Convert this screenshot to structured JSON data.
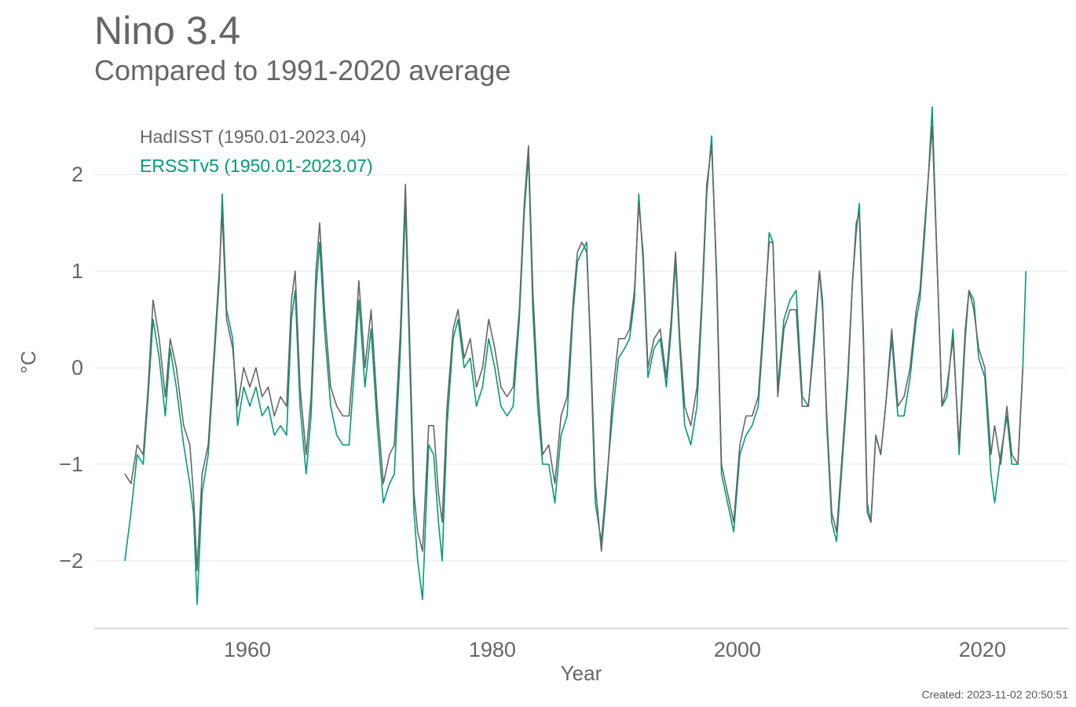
{
  "chart_data": {
    "type": "line",
    "title": "Nino 3.4",
    "subtitle": "Compared to 1991-2020 average",
    "xlabel": "Year",
    "ylabel": "°C",
    "xlim": [
      1947.5,
      2027
    ],
    "ylim": [
      -2.7,
      2.75
    ],
    "xticks": [
      1960,
      1980,
      2000,
      2020
    ],
    "yticks": [
      -2,
      -1,
      0,
      1,
      2
    ],
    "ytick_labels": [
      "−2",
      "−1",
      "0",
      "1",
      "2"
    ],
    "grid": "horizontal",
    "legend_position": "top-left",
    "created": "Created: 2023-11-02 20:50:51",
    "series": [
      {
        "name": "HadISST (1950.01-2023.04)",
        "color": "#666666",
        "x": [
          1950.0,
          1950.5,
          1951.0,
          1951.5,
          1951.9,
          1952.3,
          1952.8,
          1953.3,
          1953.7,
          1954.2,
          1954.8,
          1955.3,
          1955.6,
          1955.9,
          1956.3,
          1956.8,
          1957.3,
          1957.7,
          1957.95,
          1958.3,
          1958.8,
          1959.2,
          1959.7,
          1960.2,
          1960.7,
          1961.2,
          1961.7,
          1962.2,
          1962.7,
          1963.2,
          1963.6,
          1963.9,
          1964.3,
          1964.8,
          1965.2,
          1965.6,
          1965.9,
          1966.3,
          1966.8,
          1967.3,
          1967.8,
          1968.3,
          1968.8,
          1969.1,
          1969.6,
          1970.1,
          1970.6,
          1971.1,
          1971.6,
          1972.0,
          1972.5,
          1972.9,
          1973.2,
          1973.6,
          1973.9,
          1974.3,
          1974.8,
          1975.2,
          1975.6,
          1975.9,
          1976.3,
          1976.8,
          1977.2,
          1977.7,
          1978.2,
          1978.7,
          1979.2,
          1979.7,
          1980.2,
          1980.7,
          1981.2,
          1981.7,
          1982.2,
          1982.6,
          1982.95,
          1983.3,
          1983.7,
          1984.1,
          1984.6,
          1985.1,
          1985.6,
          1986.1,
          1986.6,
          1986.95,
          1987.3,
          1987.7,
          1988.0,
          1988.4,
          1988.9,
          1989.3,
          1989.8,
          1990.3,
          1990.8,
          1991.2,
          1991.6,
          1991.95,
          1992.3,
          1992.7,
          1993.2,
          1993.7,
          1994.2,
          1994.6,
          1994.95,
          1995.3,
          1995.7,
          1996.2,
          1996.7,
          1997.1,
          1997.5,
          1997.9,
          1998.3,
          1998.7,
          1999.2,
          1999.7,
          2000.2,
          2000.7,
          2001.2,
          2001.7,
          2002.2,
          2002.6,
          2002.9,
          2003.3,
          2003.8,
          2004.3,
          2004.8,
          2005.3,
          2005.8,
          2006.3,
          2006.7,
          2006.95,
          2007.3,
          2007.7,
          2008.1,
          2008.5,
          2009.0,
          2009.4,
          2009.7,
          2009.95,
          2010.3,
          2010.6,
          2010.9,
          2011.3,
          2011.7,
          2012.1,
          2012.6,
          2013.1,
          2013.6,
          2014.1,
          2014.6,
          2014.9,
          2015.3,
          2015.6,
          2015.9,
          2016.3,
          2016.7,
          2017.1,
          2017.6,
          2018.1,
          2018.6,
          2018.9,
          2019.3,
          2019.7,
          2020.2,
          2020.7,
          2021.0,
          2021.5,
          2022.0,
          2022.4,
          2022.9,
          2023.3
        ],
        "values": [
          -1.1,
          -1.2,
          -0.8,
          -0.9,
          -0.2,
          0.7,
          0.3,
          -0.3,
          0.3,
          0.0,
          -0.6,
          -0.8,
          -1.3,
          -2.1,
          -1.1,
          -0.8,
          0.2,
          1.0,
          1.6,
          0.5,
          0.2,
          -0.4,
          0.0,
          -0.2,
          0.0,
          -0.3,
          -0.2,
          -0.5,
          -0.3,
          -0.4,
          0.7,
          1.0,
          -0.2,
          -0.9,
          -0.3,
          1.0,
          1.5,
          0.6,
          -0.2,
          -0.4,
          -0.5,
          -0.5,
          0.3,
          0.9,
          0.0,
          0.6,
          -0.4,
          -1.2,
          -0.9,
          -0.8,
          0.4,
          1.9,
          0.5,
          -1.3,
          -1.7,
          -1.9,
          -0.6,
          -0.6,
          -1.3,
          -1.6,
          -0.4,
          0.4,
          0.6,
          0.1,
          0.3,
          -0.2,
          0.0,
          0.5,
          0.2,
          -0.2,
          -0.3,
          -0.2,
          0.6,
          1.7,
          2.3,
          0.8,
          -0.2,
          -0.9,
          -0.8,
          -1.2,
          -0.5,
          -0.3,
          0.7,
          1.2,
          1.3,
          1.2,
          0.3,
          -1.2,
          -1.9,
          -1.3,
          -0.3,
          0.3,
          0.3,
          0.4,
          0.8,
          1.7,
          1.2,
          0.0,
          0.3,
          0.4,
          -0.1,
          0.5,
          1.2,
          0.3,
          -0.4,
          -0.6,
          -0.2,
          0.7,
          1.9,
          2.3,
          1.0,
          -1.0,
          -1.3,
          -1.6,
          -0.8,
          -0.5,
          -0.5,
          -0.3,
          0.6,
          1.3,
          1.3,
          -0.3,
          0.4,
          0.6,
          0.6,
          -0.4,
          -0.4,
          0.4,
          1.0,
          0.6,
          -0.5,
          -1.5,
          -1.7,
          -1.0,
          -0.1,
          0.9,
          1.5,
          1.6,
          0.2,
          -1.5,
          -1.6,
          -0.7,
          -0.9,
          -0.4,
          0.4,
          -0.4,
          -0.3,
          0.0,
          0.6,
          0.8,
          1.5,
          2.0,
          2.5,
          1.1,
          -0.4,
          -0.2,
          0.3,
          -0.8,
          0.4,
          0.8,
          0.6,
          0.2,
          0.0,
          -0.9,
          -0.6,
          -1.0,
          -0.4,
          -0.9,
          -1.0,
          0.0
        ]
      },
      {
        "name": "ERSSTv5 (1950.01-2023.07)",
        "color": "#009b75",
        "x": [
          1950.0,
          1950.5,
          1951.0,
          1951.5,
          1951.9,
          1952.3,
          1952.8,
          1953.3,
          1953.7,
          1954.2,
          1954.8,
          1955.3,
          1955.6,
          1955.9,
          1956.3,
          1956.8,
          1957.3,
          1957.7,
          1957.95,
          1958.3,
          1958.8,
          1959.2,
          1959.7,
          1960.2,
          1960.7,
          1961.2,
          1961.7,
          1962.2,
          1962.7,
          1963.2,
          1963.6,
          1963.9,
          1964.3,
          1964.8,
          1965.2,
          1965.6,
          1965.9,
          1966.3,
          1966.8,
          1967.3,
          1967.8,
          1968.3,
          1968.8,
          1969.1,
          1969.6,
          1970.1,
          1970.6,
          1971.1,
          1971.6,
          1972.0,
          1972.5,
          1972.9,
          1973.2,
          1973.6,
          1973.9,
          1974.3,
          1974.8,
          1975.2,
          1975.6,
          1975.9,
          1976.3,
          1976.8,
          1977.2,
          1977.7,
          1978.2,
          1978.7,
          1979.2,
          1979.7,
          1980.2,
          1980.7,
          1981.2,
          1981.7,
          1982.2,
          1982.6,
          1982.95,
          1983.3,
          1983.7,
          1984.1,
          1984.6,
          1985.1,
          1985.6,
          1986.1,
          1986.6,
          1986.95,
          1987.3,
          1987.7,
          1988.0,
          1988.4,
          1988.9,
          1989.3,
          1989.8,
          1990.3,
          1990.8,
          1991.2,
          1991.6,
          1991.95,
          1992.3,
          1992.7,
          1993.2,
          1993.7,
          1994.2,
          1994.6,
          1994.95,
          1995.3,
          1995.7,
          1996.2,
          1996.7,
          1997.1,
          1997.5,
          1997.9,
          1998.3,
          1998.7,
          1999.2,
          1999.7,
          2000.2,
          2000.7,
          2001.2,
          2001.7,
          2002.2,
          2002.6,
          2002.9,
          2003.3,
          2003.8,
          2004.3,
          2004.8,
          2005.3,
          2005.8,
          2006.3,
          2006.7,
          2006.95,
          2007.3,
          2007.7,
          2008.1,
          2008.5,
          2009.0,
          2009.4,
          2009.7,
          2009.95,
          2010.3,
          2010.6,
          2010.9,
          2011.3,
          2011.7,
          2012.1,
          2012.6,
          2013.1,
          2013.6,
          2014.1,
          2014.6,
          2014.9,
          2015.3,
          2015.6,
          2015.9,
          2016.3,
          2016.7,
          2017.1,
          2017.6,
          2018.1,
          2018.6,
          2018.9,
          2019.3,
          2019.7,
          2020.2,
          2020.7,
          2021.0,
          2021.5,
          2022.0,
          2022.4,
          2022.9,
          2023.3,
          2023.55
        ],
        "values": [
          -2.0,
          -1.5,
          -0.9,
          -1.0,
          -0.3,
          0.5,
          0.1,
          -0.5,
          0.2,
          -0.2,
          -0.8,
          -1.2,
          -1.5,
          -2.45,
          -1.3,
          -0.9,
          0.1,
          0.9,
          1.8,
          0.6,
          0.3,
          -0.6,
          -0.2,
          -0.4,
          -0.2,
          -0.5,
          -0.4,
          -0.7,
          -0.6,
          -0.7,
          0.5,
          0.8,
          -0.4,
          -1.1,
          -0.5,
          0.8,
          1.3,
          0.4,
          -0.4,
          -0.7,
          -0.8,
          -0.8,
          0.1,
          0.7,
          -0.2,
          0.4,
          -0.6,
          -1.4,
          -1.2,
          -1.1,
          0.2,
          1.7,
          0.3,
          -1.5,
          -2.0,
          -2.4,
          -0.8,
          -0.9,
          -1.6,
          -2.0,
          -0.6,
          0.3,
          0.5,
          0.0,
          0.1,
          -0.4,
          -0.2,
          0.3,
          0.0,
          -0.4,
          -0.5,
          -0.4,
          0.5,
          1.6,
          2.2,
          0.6,
          -0.4,
          -1.0,
          -1.0,
          -1.4,
          -0.7,
          -0.5,
          0.6,
          1.1,
          1.2,
          1.3,
          0.2,
          -1.4,
          -1.8,
          -1.2,
          -0.5,
          0.1,
          0.2,
          0.3,
          0.7,
          1.8,
          1.1,
          -0.1,
          0.2,
          0.3,
          -0.2,
          0.4,
          1.1,
          0.2,
          -0.6,
          -0.8,
          -0.4,
          0.6,
          1.8,
          2.4,
          0.9,
          -1.1,
          -1.4,
          -1.7,
          -0.9,
          -0.7,
          -0.6,
          -0.4,
          0.5,
          1.4,
          1.3,
          -0.2,
          0.5,
          0.7,
          0.8,
          -0.3,
          -0.4,
          0.3,
          1.0,
          0.7,
          -0.6,
          -1.6,
          -1.8,
          -1.1,
          -0.2,
          0.9,
          1.4,
          1.7,
          0.3,
          -1.4,
          -1.6,
          -0.7,
          -0.9,
          -0.4,
          0.3,
          -0.5,
          -0.5,
          -0.1,
          0.5,
          0.7,
          1.4,
          2.0,
          2.7,
          1.1,
          -0.4,
          -0.3,
          0.4,
          -0.9,
          0.3,
          0.8,
          0.7,
          0.1,
          -0.1,
          -1.1,
          -1.4,
          -0.9,
          -0.5,
          -1.0,
          -1.0,
          0.0,
          1.0
        ]
      }
    ]
  }
}
